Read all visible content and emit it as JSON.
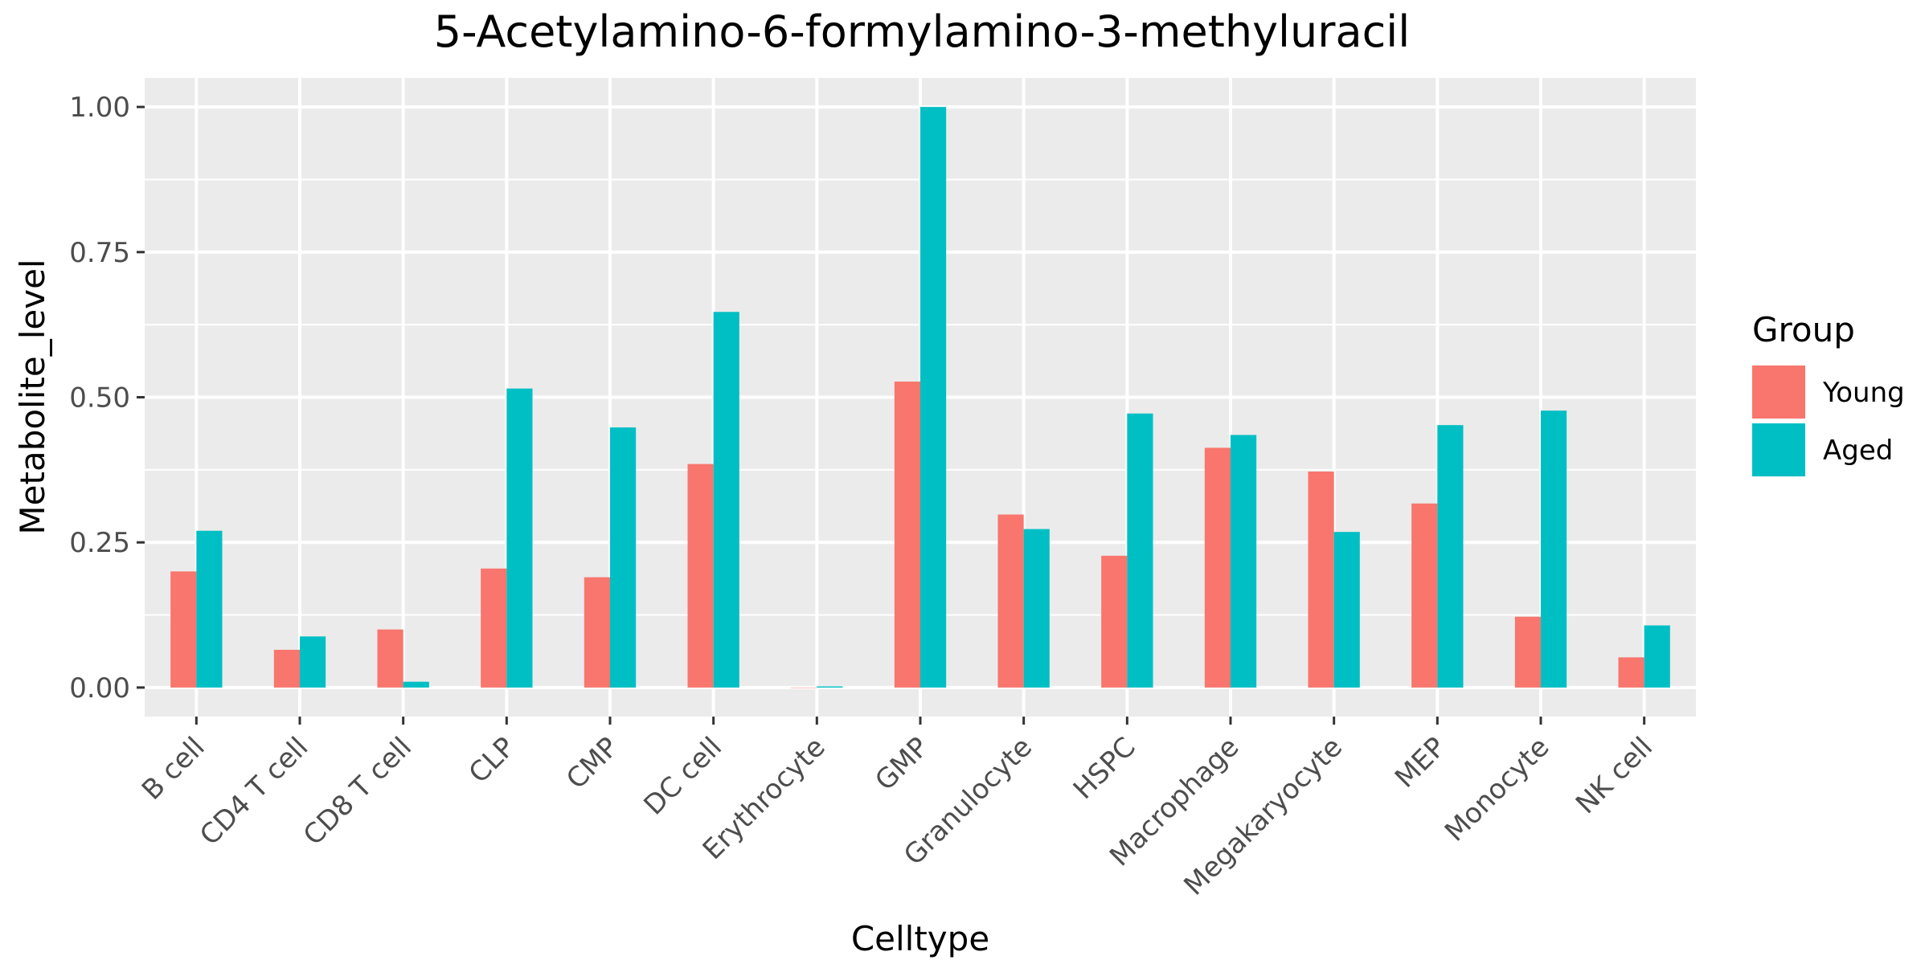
{
  "colors": {
    "Young": "#F8766D",
    "Aged": "#00BFC4",
    "panel": "#EBEBEB",
    "grid": "#FFFFFF"
  },
  "chart_data": {
    "type": "bar",
    "title": "5-Acetylamino-6-formylamino-3-methyluracil",
    "xlabel": "Celltype",
    "ylabel": "Metabolite_level",
    "ylim": [
      -0.05,
      1.05
    ],
    "yticks": [
      "0.00",
      "0.25",
      "0.50",
      "0.75",
      "1.00"
    ],
    "grid": true,
    "legend": {
      "title": "Group",
      "position": "right",
      "entries": [
        "Young",
        "Aged"
      ]
    },
    "categories": [
      "B cell",
      "CD4 T cell",
      "CD8 T cell",
      "CLP",
      "CMP",
      "DC cell",
      "Erythrocyte",
      "GMP",
      "Granulocyte",
      "HSPC",
      "Macrophage",
      "Megakaryocyte",
      "MEP",
      "Monocyte",
      "NK cell"
    ],
    "series": [
      {
        "name": "Young",
        "values": [
          0.2,
          0.065,
          0.1,
          0.205,
          0.19,
          0.385,
          0.0,
          0.527,
          0.298,
          0.227,
          0.413,
          0.372,
          0.317,
          0.122,
          0.052
        ]
      },
      {
        "name": "Aged",
        "values": [
          0.27,
          0.088,
          0.01,
          0.515,
          0.448,
          0.647,
          0.002,
          1.0,
          0.273,
          0.472,
          0.435,
          0.268,
          0.452,
          0.477,
          0.107
        ]
      }
    ]
  }
}
